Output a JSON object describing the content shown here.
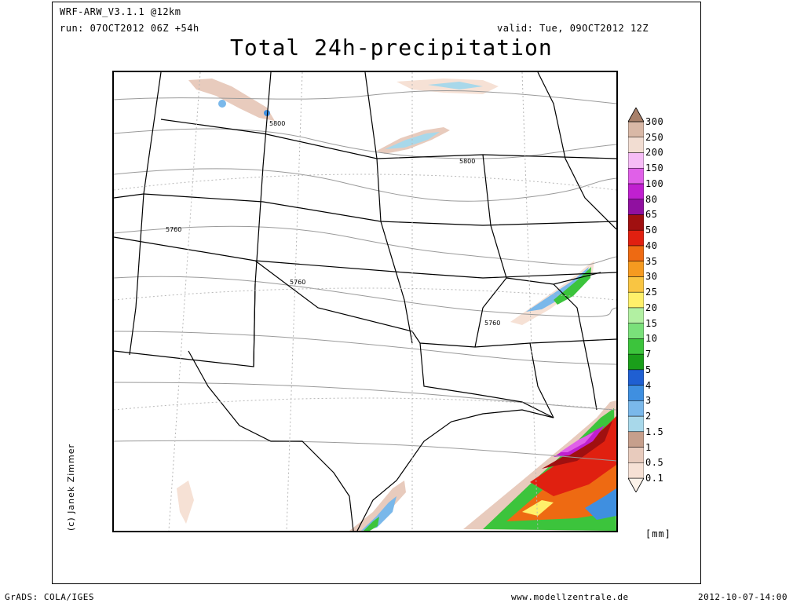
{
  "header": {
    "model": "WRF-ARW_V3.1.1 @12km",
    "run": "run: 07OCT2012 06Z +54h",
    "valid": "valid: Tue, 09OCT2012 12Z"
  },
  "title": "Total 24h-precipitation",
  "credit": "(c) Janek Zimmer",
  "footer": {
    "left": "GrADS: COLA/IGES",
    "center": "www.modellzentrale.de",
    "right": "2012-10-07-14:00"
  },
  "chart_data": {
    "type": "heatmap",
    "title": "Total 24h-precipitation",
    "unit_label": "[mm]",
    "colorbar": {
      "levels": [
        "0.1",
        "0.5",
        "1",
        "1.5",
        "2",
        "3",
        "4",
        "5",
        "7",
        "10",
        "15",
        "20",
        "25",
        "30",
        "35",
        "40",
        "50",
        "65",
        "80",
        "100",
        "150",
        "200",
        "250",
        "300"
      ],
      "colors": [
        "#fdf3ea",
        "#f6e1d5",
        "#e8cbbd",
        "#c69f8c",
        "#a8d8ea",
        "#7ab8ea",
        "#3f8fe0",
        "#1f5fd2",
        "#1a9e1a",
        "#3cc43c",
        "#7ae07a",
        "#b2f0a2",
        "#fff06a",
        "#f9c542",
        "#f59a20",
        "#ee6a12",
        "#e02010",
        "#a01010",
        "#9010a0",
        "#c020d0",
        "#e060e8",
        "#f6bcf6",
        "#f2ddd2",
        "#d9b8a6",
        "#a8806a"
      ]
    },
    "contour_labels": [
      "5800",
      "5800",
      "5760",
      "5760",
      "5760"
    ]
  }
}
